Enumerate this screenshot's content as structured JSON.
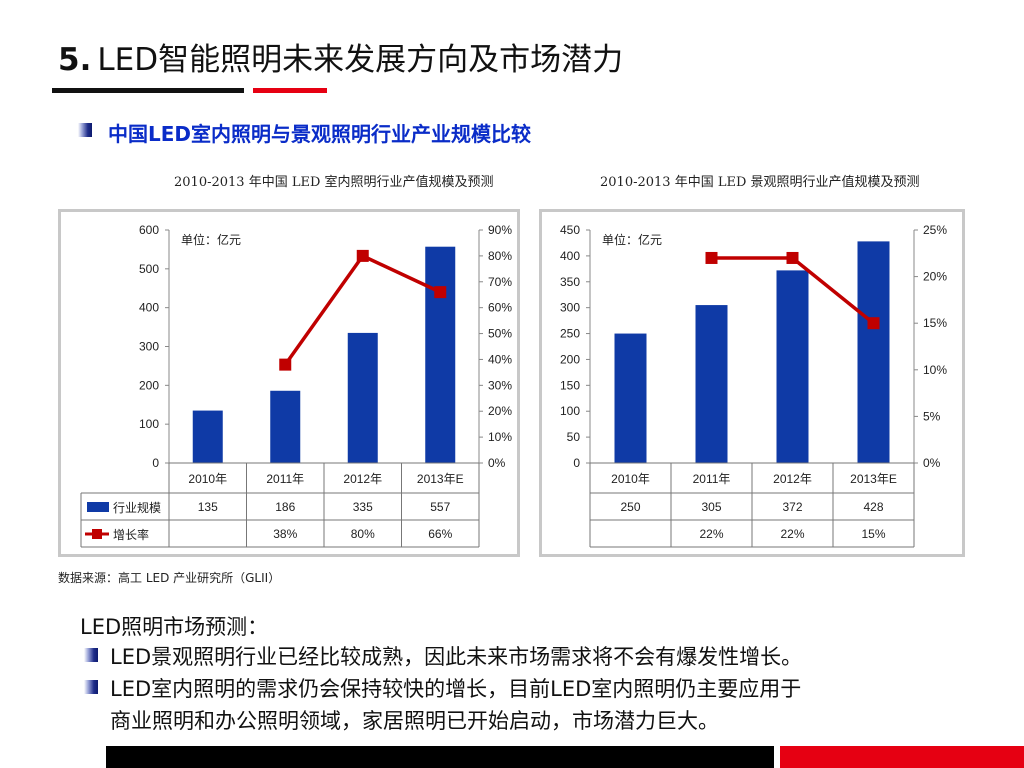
{
  "slide": {
    "title_number": "5.",
    "title_text": "LED智能照明未来发展方向及市场潜力",
    "section_heading": "中国LED室内照明与景观照明行业产业规模比较",
    "source_note": "数据来源：高工 LED 产业研究所（GLII）",
    "body_heading": "LED照明市场预测：",
    "bullets": [
      "LED景观照明行业已经比较成熟，因此未来市场需求将不会有爆发性增长。",
      "LED室内照明的需求仍会保持较快的增长，目前LED室内照明仍主要应用于",
      "商业照明和办公照明领域，家居照明已开始启动，市场潜力巨大。"
    ],
    "colors": {
      "accent_red": "#e60012",
      "heading_blue": "#0a2cc8",
      "bar_blue": "#0f3aa6",
      "line_red": "#c00000"
    }
  },
  "chart_data": [
    {
      "type": "bar",
      "title": "2010-2013 年中国 LED 室内照明行业产值规模及预测",
      "unit_label": "单位：亿元",
      "categories": [
        "2010年",
        "2011年",
        "2012年",
        "2013年E"
      ],
      "series": [
        {
          "name": "行业规模",
          "type": "bar",
          "axis": "left",
          "values": [
            135,
            186,
            335,
            557
          ],
          "labels": [
            "135",
            "186",
            "335",
            "557"
          ]
        },
        {
          "name": "增长率",
          "type": "line",
          "axis": "right",
          "values": [
            null,
            38,
            80,
            66
          ],
          "labels": [
            "",
            "38%",
            "80%",
            "66%"
          ]
        }
      ],
      "ylim": [
        0,
        600
      ],
      "yticks": [
        "0",
        "100",
        "200",
        "300",
        "400",
        "500",
        "600"
      ],
      "y2lim": [
        0,
        90
      ],
      "y2ticks": [
        "0%",
        "10%",
        "20%",
        "30%",
        "40%",
        "50%",
        "60%",
        "70%",
        "80%",
        "90%"
      ],
      "table_legend": true
    },
    {
      "type": "bar",
      "title": "2010-2013 年中国 LED 景观照明行业产值规模及预测",
      "unit_label": "单位：亿元",
      "categories": [
        "2010年",
        "2011年",
        "2012年",
        "2013年E"
      ],
      "series": [
        {
          "name": "",
          "type": "bar",
          "axis": "left",
          "values": [
            250,
            305,
            372,
            428
          ],
          "labels": [
            "250",
            "305",
            "372",
            "428"
          ]
        },
        {
          "name": "",
          "type": "line",
          "axis": "right",
          "values": [
            null,
            22,
            22,
            15
          ],
          "labels": [
            "",
            "22%",
            "22%",
            "15%"
          ]
        }
      ],
      "ylim": [
        0,
        450
      ],
      "yticks": [
        "0",
        "50",
        "100",
        "150",
        "200",
        "250",
        "300",
        "350",
        "400",
        "450"
      ],
      "y2lim": [
        0,
        25
      ],
      "y2ticks": [
        "0%",
        "5%",
        "10%",
        "15%",
        "20%",
        "25%"
      ],
      "table_legend": false
    }
  ]
}
